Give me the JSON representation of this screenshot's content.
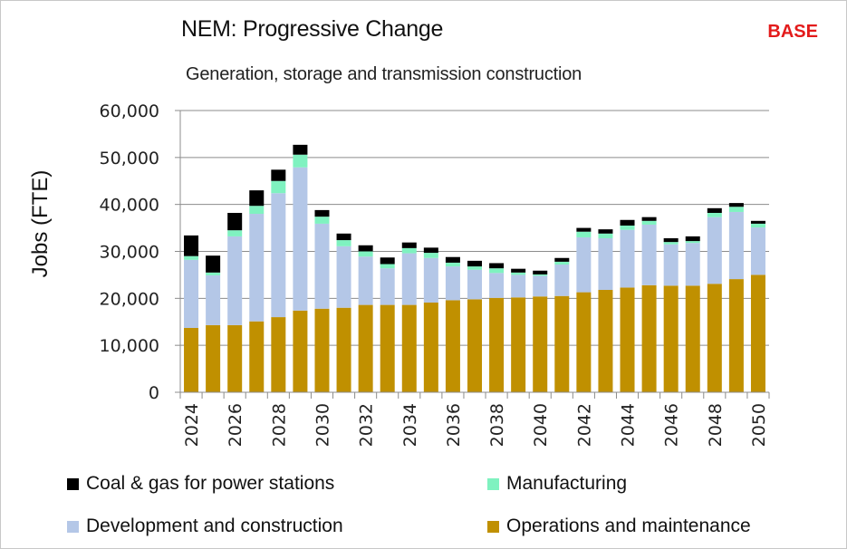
{
  "header": {
    "title": "NEM: Progressive Change",
    "badge": "BASE",
    "subtitle": "Generation, storage and transmission construction"
  },
  "colors": {
    "coal_gas": "#000000",
    "manufacturing": "#7ff2c0",
    "development": "#b4c7e7",
    "operations": "#c09000",
    "badge": "#e31b1b",
    "grid": "#8c8c8c"
  },
  "chart_data": {
    "type": "bar",
    "stacked": true,
    "title": "NEM: Progressive Change",
    "subtitle": "Generation, storage and transmission construction",
    "xlabel": "",
    "ylabel": "Jobs (FTE)",
    "ylim": [
      0,
      60000
    ],
    "yticks": [
      0,
      10000,
      20000,
      30000,
      40000,
      50000,
      60000
    ],
    "ytick_labels": [
      "0",
      "10,000",
      "20,000",
      "30,000",
      "40,000",
      "50,000",
      "60,000"
    ],
    "grid": true,
    "legend_position": "bottom",
    "categories": [
      "2024",
      "2025",
      "2026",
      "2027",
      "2028",
      "2029",
      "2030",
      "2031",
      "2032",
      "2033",
      "2034",
      "2035",
      "2036",
      "2037",
      "2038",
      "2039",
      "2040",
      "2041",
      "2042",
      "2043",
      "2044",
      "2045",
      "2046",
      "2047",
      "2048",
      "2049",
      "2050"
    ],
    "xtick_labels": [
      "2024",
      "2026",
      "2028",
      "2030",
      "2032",
      "2034",
      "2036",
      "2038",
      "2040",
      "2042",
      "2044",
      "2046",
      "2048",
      "2050"
    ],
    "series": [
      {
        "name": "Operations and maintenance",
        "color_key": "operations",
        "values": [
          13700,
          14300,
          14300,
          15100,
          16000,
          17400,
          17800,
          18000,
          18600,
          18600,
          18600,
          19100,
          19600,
          19800,
          20100,
          20200,
          20400,
          20500,
          21300,
          21800,
          22300,
          22800,
          22700,
          22700,
          23100,
          24100,
          25000
        ]
      },
      {
        "name": "Development and construction",
        "color_key": "development",
        "values": [
          14500,
          10600,
          18900,
          22900,
          26400,
          30500,
          18100,
          13100,
          10300,
          7800,
          11000,
          9500,
          7200,
          6300,
          5300,
          4800,
          4400,
          6700,
          11700,
          11000,
          12300,
          12900,
          8800,
          9100,
          14200,
          14300,
          10100
        ]
      },
      {
        "name": "Manufacturing",
        "color_key": "manufacturing",
        "values": [
          800,
          600,
          1300,
          1700,
          2600,
          2700,
          1500,
          1300,
          1100,
          900,
          1100,
          1100,
          800,
          700,
          1000,
          500,
          300,
          600,
          1200,
          1000,
          900,
          800,
          500,
          400,
          900,
          1100,
          800
        ]
      },
      {
        "name": "Coal & gas for power stations",
        "color_key": "coal_gas",
        "values": [
          4400,
          3600,
          3700,
          3300,
          2400,
          2100,
          1400,
          1400,
          1300,
          1400,
          1200,
          1100,
          1200,
          1200,
          1100,
          800,
          800,
          800,
          800,
          900,
          1200,
          800,
          800,
          1000,
          1000,
          800,
          600
        ]
      }
    ]
  },
  "legend": {
    "items": [
      {
        "label": "Coal & gas for power stations",
        "color_key": "coal_gas"
      },
      {
        "label": "Manufacturing",
        "color_key": "manufacturing"
      },
      {
        "label": "Development and construction",
        "color_key": "development"
      },
      {
        "label": "Operations and maintenance",
        "color_key": "operations"
      }
    ]
  }
}
